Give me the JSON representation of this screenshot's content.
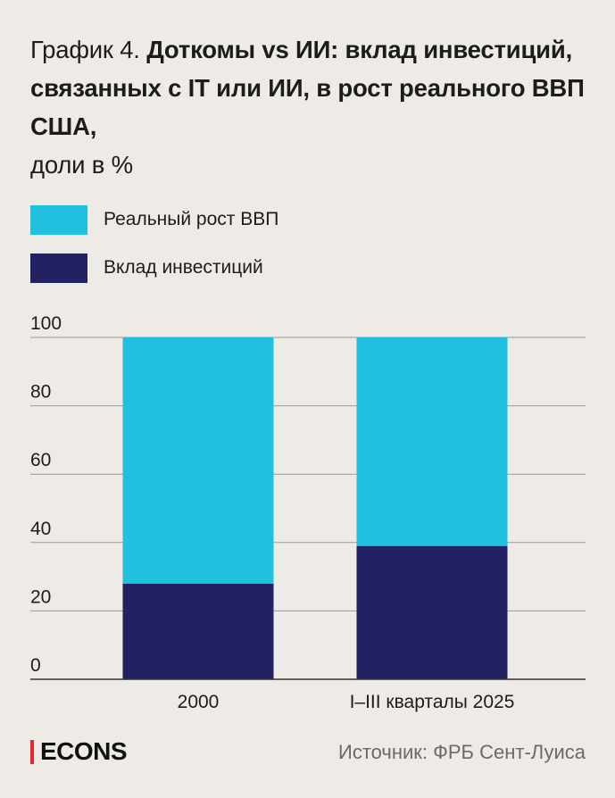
{
  "header": {
    "title_lead": "График 4.",
    "title_bold": "Доткомы vs ИИ: вклад инвестиций, связанных с IT или ИИ, в рост реального ВВП США,",
    "title_unit": "доли в %"
  },
  "colors": {
    "gdp": "#22c0df",
    "investment": "#222262",
    "grid": "#9a9a9a",
    "accent": "#e8262c"
  },
  "chart_data": {
    "type": "bar",
    "stacked": true,
    "categories": [
      "2000",
      "I–III кварталы 2025"
    ],
    "series": [
      {
        "name": "Вклад инвестиций",
        "values": [
          28,
          39
        ]
      },
      {
        "name": "Реальный рост ВВП",
        "values": [
          72,
          61
        ]
      }
    ],
    "yticks": [
      0,
      20,
      40,
      60,
      80,
      100
    ],
    "ylim": [
      0,
      100
    ],
    "grid": true,
    "legend_position": "top-left"
  },
  "legend": [
    {
      "label": "Реальный рост ВВП",
      "color": "#22c0df"
    },
    {
      "label": "Вклад инвестиций",
      "color": "#222262"
    }
  ],
  "footer": {
    "brand": "ECONS",
    "source": "Источник: ФРБ Сент-Луиса"
  }
}
